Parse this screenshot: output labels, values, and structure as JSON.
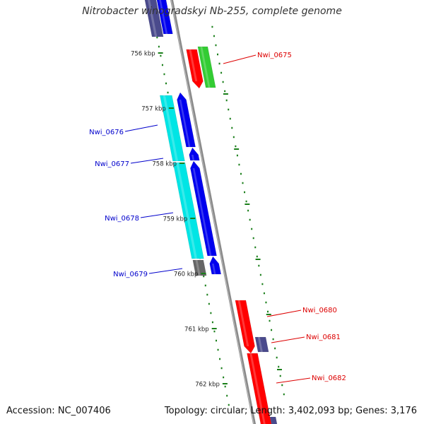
{
  "title": "Nitrobacter winogradskyi Nb-255, complete genome",
  "accession_text": "Accession: NC_007406",
  "topology_text": "Topology: circular; Length: 3,402,093 bp; Genes: 3,176",
  "colors": {
    "backbone": "#8a8a8a",
    "tick": "#1a7f1a",
    "forward_label": "#dd0000",
    "reverse_label": "#0000cc",
    "red": "#ff0000",
    "green": "#33cc33",
    "blue": "#0000ee",
    "cyan": "#00e5e5",
    "gray": "#666666",
    "slate": "#4a4a8c"
  },
  "scale": {
    "labels": [
      "756 kbp",
      "757 kbp",
      "758 kbp",
      "759 kbp",
      "760 kbp",
      "761 kbp",
      "762 kbp"
    ]
  },
  "genes": [
    {
      "id": "Nwi_0675",
      "strand": "+"
    },
    {
      "id": "Nwi_0676",
      "strand": "-"
    },
    {
      "id": "Nwi_0677",
      "strand": "-"
    },
    {
      "id": "Nwi_0678",
      "strand": "-"
    },
    {
      "id": "Nwi_0679",
      "strand": "-"
    },
    {
      "id": "Nwi_0680",
      "strand": "+"
    },
    {
      "id": "Nwi_0681",
      "strand": "+"
    },
    {
      "id": "Nwi_0682",
      "strand": "+"
    }
  ]
}
